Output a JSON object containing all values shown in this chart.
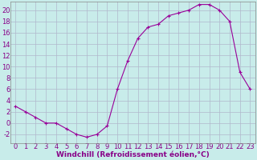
{
  "x": [
    0,
    1,
    2,
    3,
    4,
    5,
    6,
    7,
    8,
    9,
    10,
    11,
    12,
    13,
    14,
    15,
    16,
    17,
    18,
    19,
    20,
    21,
    22,
    23
  ],
  "y": [
    3,
    2,
    1,
    0,
    0,
    -1,
    -2,
    -2.5,
    -2,
    -0.5,
    6,
    11,
    15,
    17,
    17.5,
    19,
    19.5,
    20,
    21,
    21,
    20,
    18,
    9,
    6
  ],
  "line_color": "#990099",
  "marker": "+",
  "marker_size": 3,
  "marker_lw": 0.8,
  "bg_color": "#c8ecea",
  "grid_color": "#b0b8cc",
  "xlabel": "Windchill (Refroidissement éolien,°C)",
  "xlabel_color": "#880088",
  "tick_color": "#880088",
  "axis_color": "#888888",
  "ylim": [
    -3.5,
    21.5
  ],
  "xlim": [
    -0.5,
    23.5
  ],
  "yticks": [
    -2,
    0,
    2,
    4,
    6,
    8,
    10,
    12,
    14,
    16,
    18,
    20
  ],
  "xticks": [
    0,
    1,
    2,
    3,
    4,
    5,
    6,
    7,
    8,
    9,
    10,
    11,
    12,
    13,
    14,
    15,
    16,
    17,
    18,
    19,
    20,
    21,
    22,
    23
  ],
  "tick_fontsize": 6,
  "xlabel_fontsize": 6.5
}
